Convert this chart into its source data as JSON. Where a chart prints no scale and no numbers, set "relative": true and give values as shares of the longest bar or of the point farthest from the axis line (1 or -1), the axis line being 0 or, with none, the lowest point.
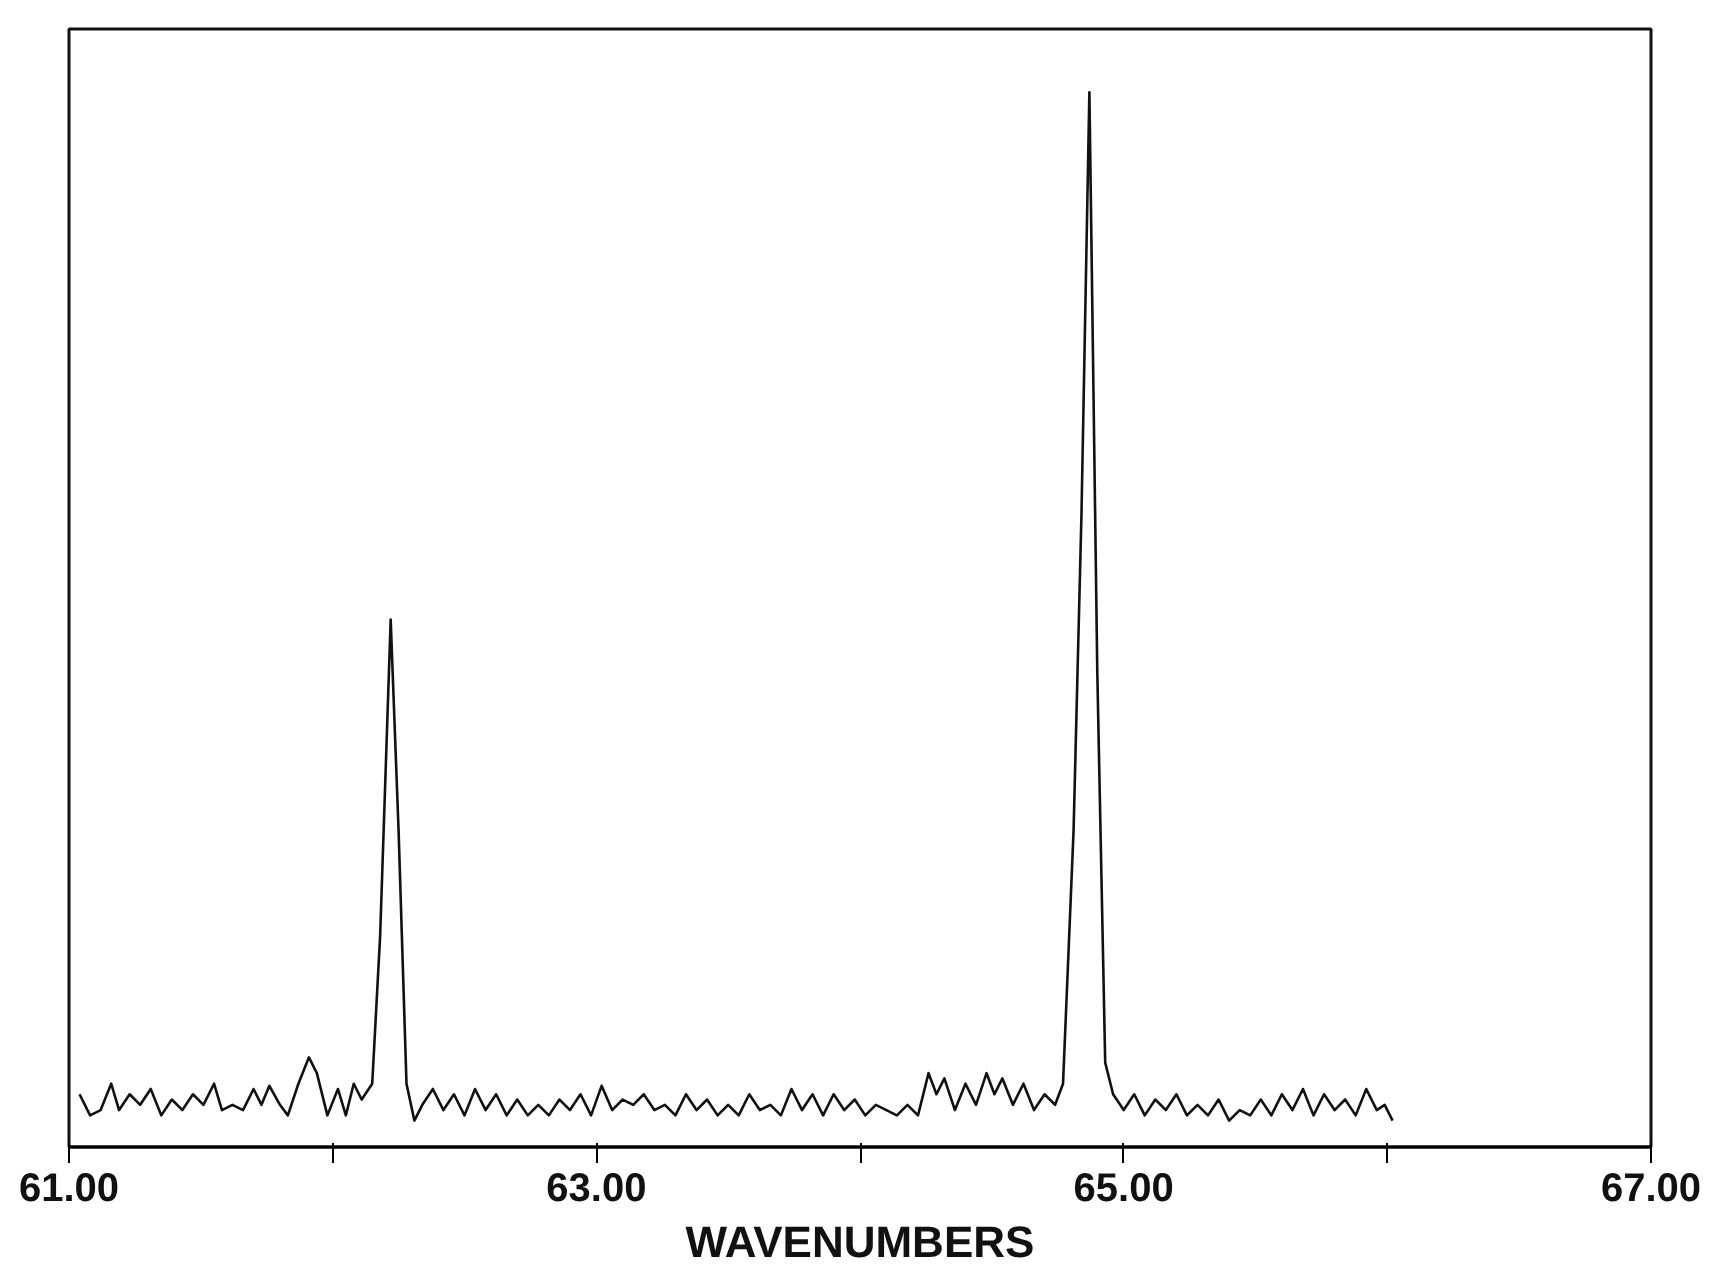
{
  "chart_data": {
    "type": "line",
    "relative": true,
    "xlabel": "WAVENUMBERS",
    "color": "#111111",
    "marker": "none",
    "line_style": "solid",
    "grid": false,
    "xlim": [
      61,
      67
    ],
    "xticks": [
      {
        "value": 61,
        "label": "61.00"
      },
      {
        "value": 62,
        "label": null
      },
      {
        "value": 63,
        "label": "63.00"
      },
      {
        "value": 64,
        "label": null
      },
      {
        "value": 65,
        "label": "65.00"
      },
      {
        "value": 66,
        "label": null
      },
      {
        "value": 67,
        "label": "67.00"
      }
    ],
    "x": [
      61.04,
      61.08,
      61.12,
      61.16,
      61.19,
      61.23,
      61.27,
      61.31,
      61.35,
      61.39,
      61.43,
      61.47,
      61.51,
      61.55,
      61.58,
      61.62,
      61.66,
      61.7,
      61.73,
      61.76,
      61.8,
      61.83,
      61.87,
      61.91,
      61.94,
      61.98,
      62.02,
      62.05,
      62.08,
      62.11,
      62.15,
      62.18,
      62.22,
      62.25,
      62.28,
      62.31,
      62.34,
      62.38,
      62.42,
      62.46,
      62.5,
      62.54,
      62.58,
      62.62,
      62.66,
      62.7,
      62.74,
      62.78,
      62.82,
      62.86,
      62.9,
      62.94,
      62.98,
      63.02,
      63.06,
      63.1,
      63.14,
      63.18,
      63.22,
      63.26,
      63.3,
      63.34,
      63.38,
      63.42,
      63.46,
      63.5,
      63.54,
      63.58,
      63.62,
      63.66,
      63.7,
      63.74,
      63.78,
      63.82,
      63.86,
      63.9,
      63.94,
      63.98,
      64.02,
      64.06,
      64.1,
      64.14,
      64.18,
      64.22,
      64.26,
      64.29,
      64.32,
      64.36,
      64.4,
      64.44,
      64.48,
      64.51,
      64.54,
      64.58,
      64.62,
      64.66,
      64.7,
      64.74,
      64.77,
      64.81,
      64.84,
      64.87,
      64.9,
      64.93,
      64.96,
      65.0,
      65.04,
      65.08,
      65.12,
      65.16,
      65.2,
      65.24,
      65.28,
      65.32,
      65.36,
      65.4,
      65.44,
      65.48,
      65.52,
      65.56,
      65.6,
      65.64,
      65.68,
      65.72,
      65.76,
      65.8,
      65.84,
      65.88,
      65.92,
      65.96,
      65.99,
      66.02
    ],
    "values": [
      0.05,
      0.03,
      0.035,
      0.06,
      0.035,
      0.05,
      0.04,
      0.055,
      0.03,
      0.045,
      0.035,
      0.05,
      0.04,
      0.06,
      0.035,
      0.04,
      0.035,
      0.055,
      0.04,
      0.058,
      0.04,
      0.03,
      0.06,
      0.085,
      0.07,
      0.03,
      0.055,
      0.03,
      0.06,
      0.045,
      0.06,
      0.2,
      0.5,
      0.3,
      0.06,
      0.025,
      0.04,
      0.055,
      0.035,
      0.05,
      0.03,
      0.055,
      0.035,
      0.05,
      0.03,
      0.045,
      0.03,
      0.04,
      0.03,
      0.045,
      0.035,
      0.05,
      0.03,
      0.058,
      0.035,
      0.045,
      0.04,
      0.05,
      0.035,
      0.04,
      0.03,
      0.05,
      0.035,
      0.045,
      0.03,
      0.04,
      0.03,
      0.05,
      0.035,
      0.04,
      0.03,
      0.055,
      0.035,
      0.05,
      0.03,
      0.05,
      0.035,
      0.045,
      0.03,
      0.04,
      0.035,
      0.03,
      0.04,
      0.03,
      0.07,
      0.05,
      0.065,
      0.035,
      0.06,
      0.04,
      0.07,
      0.05,
      0.065,
      0.04,
      0.06,
      0.035,
      0.05,
      0.04,
      0.06,
      0.3,
      0.6,
      1.0,
      0.45,
      0.08,
      0.05,
      0.035,
      0.05,
      0.03,
      0.045,
      0.035,
      0.05,
      0.03,
      0.04,
      0.03,
      0.045,
      0.025,
      0.035,
      0.03,
      0.045,
      0.03,
      0.05,
      0.035,
      0.055,
      0.03,
      0.05,
      0.035,
      0.045,
      0.03,
      0.055,
      0.035,
      0.04,
      0.025
    ]
  }
}
